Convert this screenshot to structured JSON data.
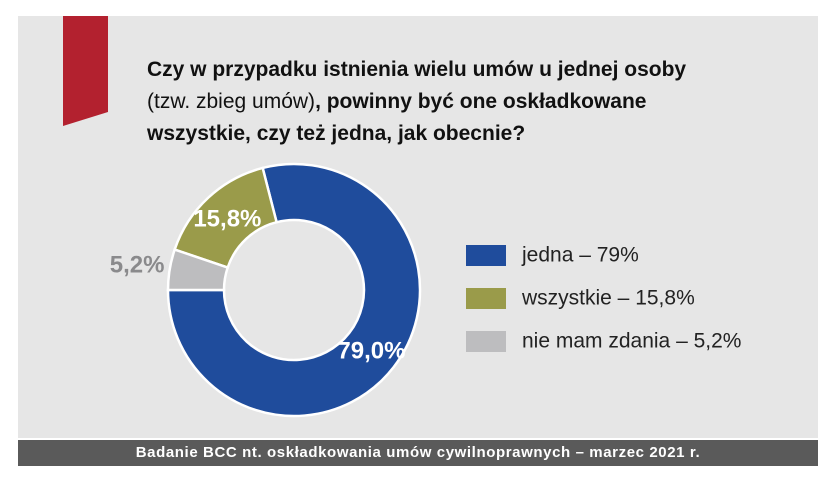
{
  "chart_data": {
    "type": "pie",
    "title_lines": [
      [
        {
          "text": "Czy w przypadku istnienia wielu umów u jednej osoby",
          "bold": true
        }
      ],
      [
        {
          "text": "(tzw. zbieg umów)",
          "bold": false
        },
        {
          "text": ", powinny być one oskładkowane",
          "bold": true
        }
      ],
      [
        {
          "text": "wszystkie, czy też jedna, jak obecnie?",
          "bold": true
        }
      ]
    ],
    "categories": [
      "jedna – 79%",
      "wszystkie – 15,8%",
      "nie mam zdania – 5,2%"
    ],
    "values": [
      79,
      15.8,
      5.2
    ],
    "value_labels": [
      "79,0%",
      "15,8%",
      "5,2%"
    ],
    "colors": [
      "#1f4c9c",
      "#9a9b4a",
      "#bdbdbf"
    ],
    "legend": "right",
    "footer": "Badanie BCC nt. oskładkowania umów cywilnoprawnych – marzec 2021 r."
  }
}
